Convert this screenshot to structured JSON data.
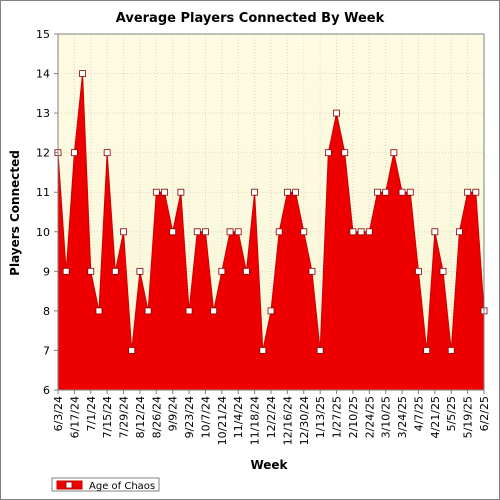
{
  "chart_data": {
    "type": "area",
    "title": "Average Players Connected By Week",
    "xlabel": "Week",
    "ylabel": "Players Connected",
    "ylim": [
      6,
      15
    ],
    "yticks": [
      6,
      7,
      8,
      9,
      10,
      11,
      12,
      13,
      14,
      15
    ],
    "grid": true,
    "legend_position": "bottom-left",
    "colors": {
      "fill": "#ee0000",
      "line": "#cc0000",
      "marker_fill": "#ffffff",
      "plot_bg_top": "#fffbe3",
      "plot_bg_bottom": "#f6f6d8",
      "grid": "#d8d8c8"
    },
    "x_tick_labels": [
      "6/3/24",
      "6/17/24",
      "7/1/24",
      "7/15/24",
      "7/29/24",
      "8/12/24",
      "8/26/24",
      "9/9/24",
      "9/23/24",
      "10/7/24",
      "10/21/24",
      "11/4/24",
      "11/18/24",
      "12/2/24",
      "12/16/24",
      "12/30/24",
      "1/13/25",
      "1/27/25",
      "2/10/25",
      "2/24/25",
      "3/10/25",
      "3/24/25",
      "4/7/25",
      "4/21/25",
      "5/5/25",
      "5/19/25",
      "6/2/25"
    ],
    "series": [
      {
        "name": "Age of Chaos",
        "values": [
          12,
          9,
          12,
          14,
          9,
          8,
          12,
          9,
          10,
          7,
          9,
          8,
          11,
          11,
          10,
          11,
          8,
          10,
          10,
          8,
          9,
          10,
          10,
          9,
          11,
          7,
          8,
          10,
          11,
          11,
          10,
          9,
          7,
          12,
          13,
          12,
          10,
          10,
          10,
          11,
          11,
          12,
          11,
          11,
          9,
          7,
          10,
          9,
          7,
          10,
          11,
          11,
          8
        ]
      }
    ]
  }
}
